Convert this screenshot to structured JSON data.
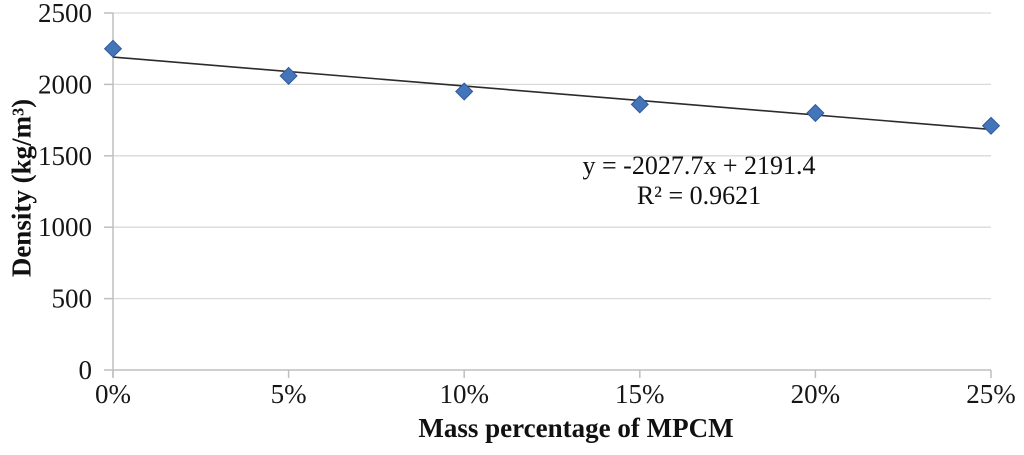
{
  "chart_data": {
    "type": "scatter",
    "title": "",
    "xlabel": "Mass percentage of MPCM",
    "ylabel": "Density (kg/m³)",
    "series_name": "Density",
    "x_tick_labels": [
      "0%",
      "5%",
      "10%",
      "15%",
      "20%",
      "25%"
    ],
    "x": [
      0,
      0.05,
      0.1,
      0.15,
      0.2,
      0.25
    ],
    "values": [
      2250,
      2060,
      1950,
      1860,
      1800,
      1710
    ],
    "xlim": [
      0,
      0.25
    ],
    "ylim": [
      0,
      2500
    ],
    "yticks": [
      0,
      500,
      1000,
      1500,
      2000,
      2500
    ],
    "ytick_labels": [
      "0",
      "500",
      "1000",
      "1500",
      "2000",
      "2500"
    ],
    "grid": "horizontal-only",
    "legend": "none",
    "marker": "diamond",
    "trendline": {
      "type": "linear",
      "slope": -2027.7,
      "intercept": 2191.4,
      "equation_label": "y = -2027.7x + 2191.4",
      "r2_label": "R² = 0.9621"
    },
    "colors": {
      "marker_fill": "#4475b9",
      "marker_border": "#30599b",
      "trendline": "#2b2b2b",
      "gridline": "#d9d9d9",
      "axis": "#bfbfbf",
      "text": "#161616"
    }
  }
}
